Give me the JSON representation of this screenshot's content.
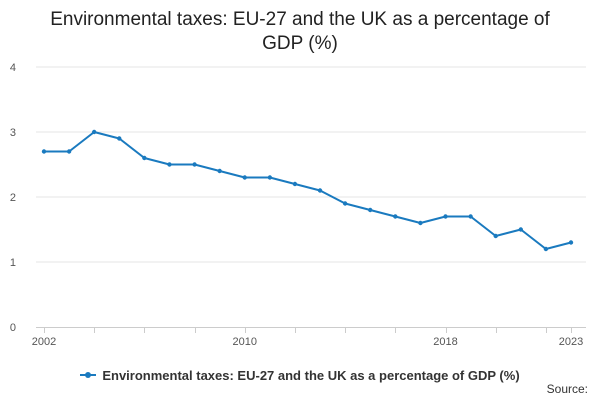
{
  "colors": {
    "series": "#1a7abf",
    "grid": "#e6e6e6",
    "axis": "#cccccc"
  },
  "chart_data": {
    "type": "line",
    "title_lines": [
      "Environmental taxes: EU-27 and the UK as a percentage of",
      "GDP (%)"
    ],
    "x": [
      2002,
      2003,
      2004,
      2005,
      2006,
      2007,
      2008,
      2009,
      2010,
      2011,
      2012,
      2013,
      2014,
      2015,
      2016,
      2017,
      2018,
      2019,
      2020,
      2021,
      2022,
      2023
    ],
    "series": [
      {
        "name": "Environmental taxes: EU-27 and the UK as a percentage of GDP (%)",
        "values": [
          2.7,
          2.7,
          3.0,
          2.9,
          2.6,
          2.5,
          2.5,
          2.4,
          2.3,
          2.3,
          2.2,
          2.1,
          1.9,
          1.8,
          1.7,
          1.6,
          1.7,
          1.7,
          1.4,
          1.5,
          1.2,
          1.3
        ]
      }
    ],
    "xlim": [
      2002,
      2023
    ],
    "ylim": [
      0,
      4
    ],
    "y_ticks": [
      0,
      1,
      2,
      3,
      4
    ],
    "x_tick_labels": [
      "2002",
      "2010",
      "2018",
      "2023"
    ],
    "xlabel": "",
    "ylabel": "",
    "grid": true,
    "legend_position": "bottom"
  },
  "footer": {
    "source_label": "Source:"
  }
}
